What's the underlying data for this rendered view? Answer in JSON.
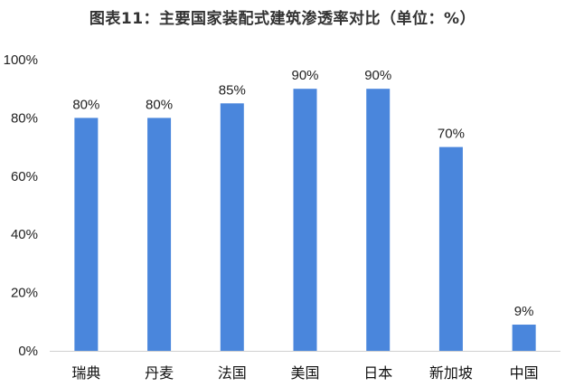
{
  "chart_data": {
    "type": "bar",
    "title": "图表11：主要国家装配式建筑渗透率对比（单位：%）",
    "categories": [
      "瑞典",
      "丹麦",
      "法国",
      "美国",
      "日本",
      "新加坡",
      "中国"
    ],
    "values": [
      80,
      80,
      85,
      90,
      90,
      70,
      9
    ],
    "data_labels": [
      "80%",
      "80%",
      "85%",
      "90%",
      "90%",
      "70%",
      "9%"
    ],
    "xlabel": "",
    "ylabel": "",
    "ylim": [
      0,
      100
    ],
    "yticks": [
      "0%",
      "20%",
      "40%",
      "60%",
      "80%",
      "100%"
    ],
    "grid": false,
    "bar_color": "#4a86dc"
  }
}
